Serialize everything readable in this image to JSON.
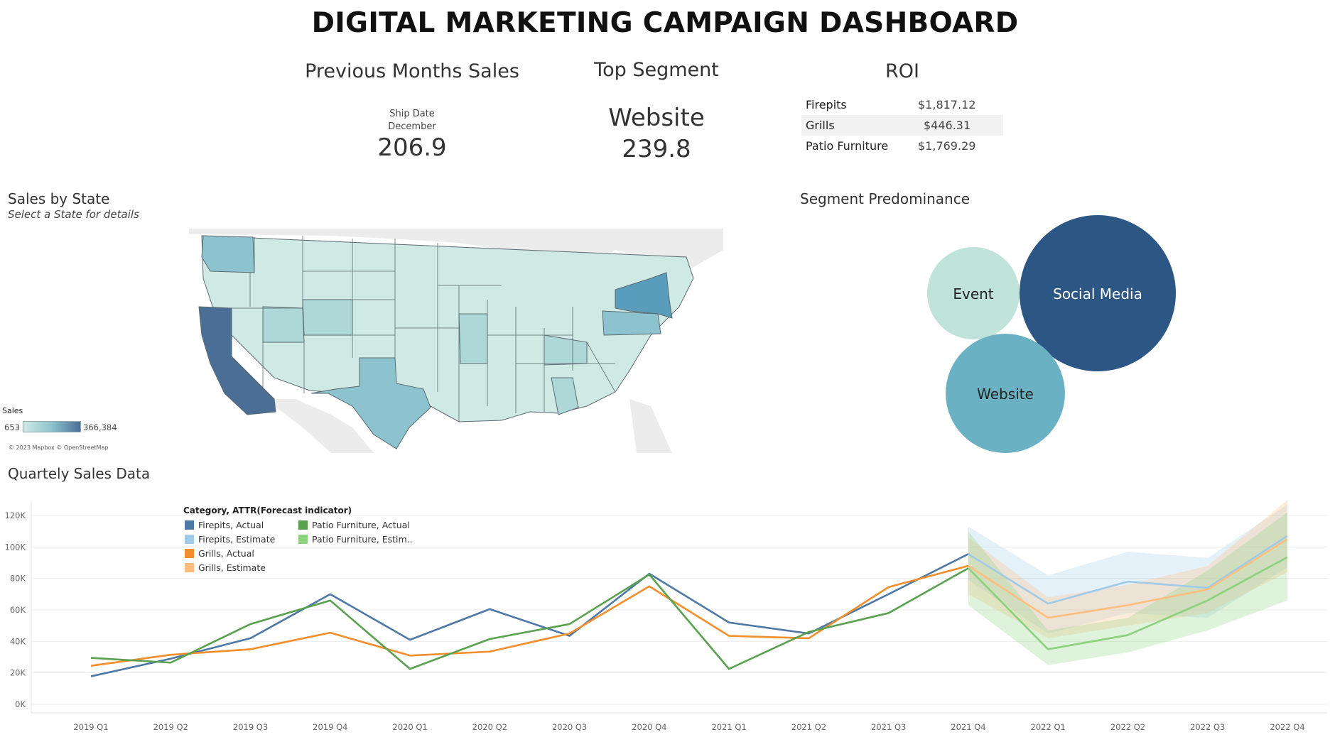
{
  "dashboard": {
    "title": "DIGITAL MARKETING CAMPAIGN DASHBOARD"
  },
  "kpis": {
    "previous_sales": {
      "title": "Previous Months Sales",
      "field_label": "Ship Date",
      "month": "December",
      "value": "206.9"
    },
    "top_segment": {
      "title": "Top Segment",
      "segment": "Website",
      "value": "239.8"
    },
    "roi": {
      "title": "ROI",
      "rows": [
        {
          "name": "Firepits",
          "value": "$1,817.12"
        },
        {
          "name": "Grills",
          "value": "$446.31"
        },
        {
          "name": "Patio Furniture",
          "value": "$1,769.29"
        }
      ]
    }
  },
  "map": {
    "title": "Sales by State",
    "subtitle": "Select a State for details",
    "legend_title": "Sales",
    "legend_min": "653",
    "legend_max": "366,384",
    "attribution": "© 2023 Mapbox © OpenStreetMap",
    "colors": {
      "low": "#cfe9e4",
      "mid": "#8cc3cf",
      "high": "#4a6e95"
    }
  },
  "segments": {
    "title": "Segment Predominance",
    "bubbles": [
      {
        "label": "Event",
        "color": "#bfe3d9",
        "text_color": "#222"
      },
      {
        "label": "Social Media",
        "color": "#2c5784",
        "text_color": "#ffffff"
      },
      {
        "label": "Website",
        "color": "#6ab2c3",
        "text_color": "#222"
      }
    ]
  },
  "quarterly": {
    "title": "Quartely Sales Data",
    "legend_title": "Category, ATTR(Forecast indicator)",
    "legend": [
      {
        "label": "Firepits, Actual",
        "color": "#4e79a7"
      },
      {
        "label": "Patio Furniture, Actual",
        "color": "#59a14f"
      },
      {
        "label": "Firepits, Estimate",
        "color": "#a0cbe8"
      },
      {
        "label": "Patio Furniture, Estim..",
        "color": "#8cd17d"
      },
      {
        "label": "Grills, Actual",
        "color": "#f28e2b"
      },
      {
        "label": "Grills, Estimate",
        "color": "#ffbe7d"
      }
    ]
  },
  "chart_data": {
    "type": "line",
    "title": "Quartely Sales Data",
    "x": [
      "2019 Q1",
      "2019 Q2",
      "2019 Q3",
      "2019 Q4",
      "2020 Q1",
      "2020 Q2",
      "2020 Q3",
      "2020 Q4",
      "2021 Q1",
      "2021 Q2",
      "2021 Q3",
      "2021 Q4",
      "2022 Q1",
      "2022 Q2",
      "2022 Q3",
      "2022 Q4"
    ],
    "y_ticks": [
      "0K",
      "20K",
      "40K",
      "60K",
      "80K",
      "100K",
      "120K"
    ],
    "ylim": [
      0,
      120000
    ],
    "grid": true,
    "legend_position": "top-left",
    "series": [
      {
        "name": "Firepits, Actual",
        "color": "#4e79a7",
        "values": [
          17800,
          29000,
          42000,
          70000,
          41000,
          60500,
          43500,
          83000,
          52000,
          45000,
          70000,
          95500,
          null,
          null,
          null,
          null
        ]
      },
      {
        "name": "Firepits, Estimate",
        "color": "#a0cbe8",
        "values": [
          null,
          null,
          null,
          null,
          null,
          null,
          null,
          null,
          null,
          null,
          null,
          95500,
          64000,
          78000,
          74000,
          107000
        ],
        "band_low": [
          null,
          null,
          null,
          null,
          null,
          null,
          null,
          null,
          null,
          null,
          null,
          79000,
          45000,
          58000,
          55000,
          87000
        ],
        "band_high": [
          null,
          null,
          null,
          null,
          null,
          null,
          null,
          null,
          null,
          null,
          null,
          113000,
          82000,
          97000,
          93000,
          127000
        ]
      },
      {
        "name": "Grills, Actual",
        "color": "#f28e2b",
        "values": [
          24500,
          31500,
          35000,
          45500,
          31000,
          33500,
          45000,
          75000,
          43500,
          42000,
          74500,
          88000,
          null,
          null,
          null,
          null
        ]
      },
      {
        "name": "Grills, Estimate",
        "color": "#ffbe7d",
        "values": [
          null,
          null,
          null,
          null,
          null,
          null,
          null,
          null,
          null,
          null,
          null,
          88000,
          55000,
          63000,
          73000,
          105000
        ],
        "band_low": [
          null,
          null,
          null,
          null,
          null,
          null,
          null,
          null,
          null,
          null,
          null,
          70000,
          42000,
          50000,
          58000,
          84000
        ],
        "band_high": [
          null,
          null,
          null,
          null,
          null,
          null,
          null,
          null,
          null,
          null,
          null,
          106000,
          68000,
          76000,
          88000,
          130000
        ]
      },
      {
        "name": "Patio Furniture, Actual",
        "color": "#59a14f",
        "values": [
          29500,
          26500,
          51000,
          66000,
          22500,
          41500,
          51000,
          82500,
          22500,
          46000,
          58000,
          86500,
          null,
          null,
          null,
          null
        ]
      },
      {
        "name": "Patio Furniture, Estim..",
        "color": "#8cd17d",
        "values": [
          null,
          null,
          null,
          null,
          null,
          null,
          null,
          null,
          null,
          null,
          null,
          86500,
          35000,
          44000,
          66000,
          93500
        ],
        "band_low": [
          null,
          null,
          null,
          null,
          null,
          null,
          null,
          null,
          null,
          null,
          null,
          63000,
          25000,
          33000,
          47000,
          66000
        ],
        "band_high": [
          null,
          null,
          null,
          null,
          null,
          null,
          null,
          null,
          null,
          null,
          null,
          110000,
          47000,
          55000,
          85000,
          122000
        ]
      }
    ]
  }
}
